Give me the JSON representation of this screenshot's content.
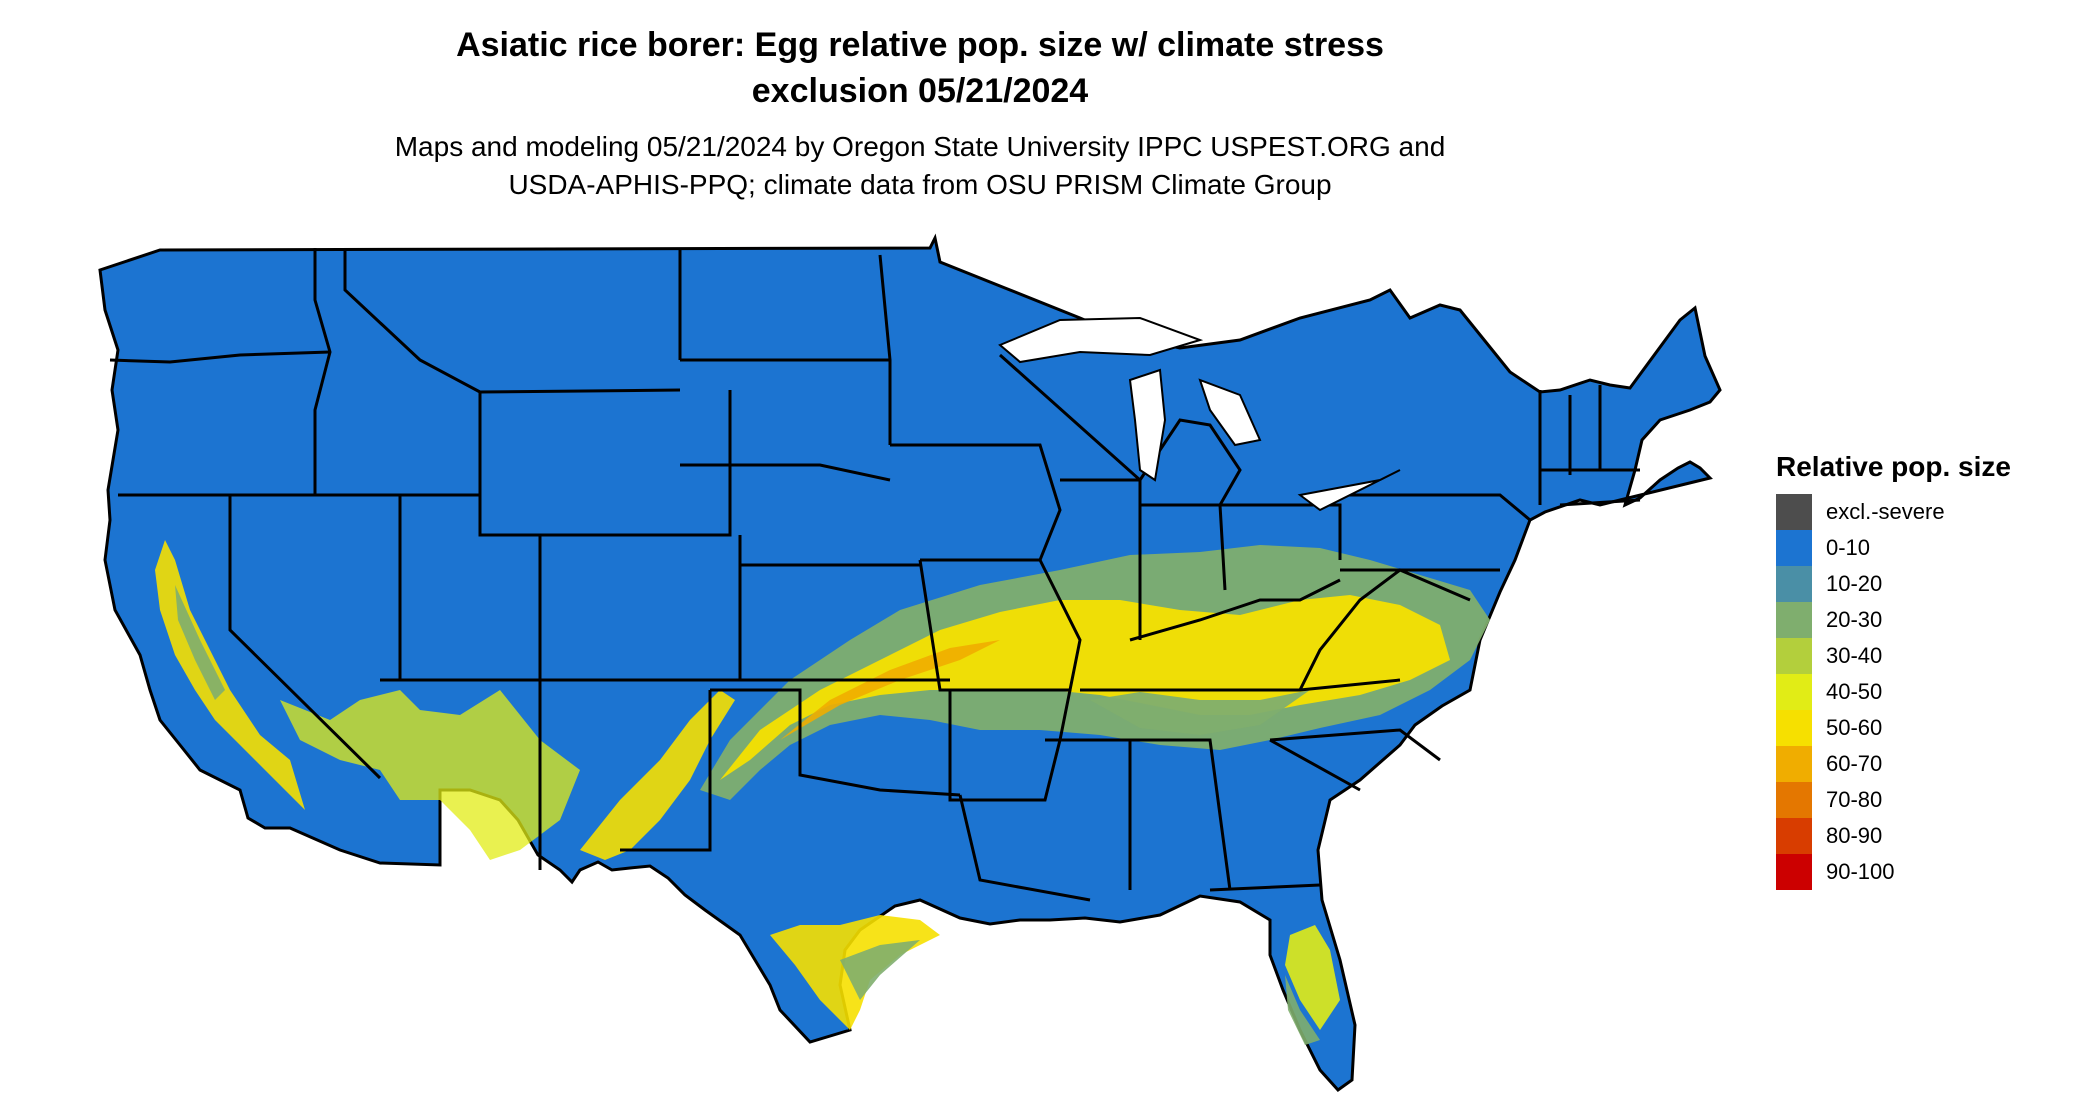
{
  "title": {
    "line1": "Asiatic rice borer: Egg relative pop. size w/ climate stress",
    "line2": "exclusion 05/21/2024"
  },
  "subtitle": {
    "line1": "Maps and modeling 05/21/2024 by Oregon State University IPPC USPEST.ORG and",
    "line2": "USDA-APHIS-PPQ; climate data from OSU PRISM Climate Group"
  },
  "legend": {
    "title": "Relative pop. size",
    "items": [
      {
        "label": "excl.-severe",
        "color": "#4d4d4d"
      },
      {
        "label": "0-10",
        "color": "#1c74d1"
      },
      {
        "label": "10-20",
        "color": "#4a8fa6"
      },
      {
        "label": "20-30",
        "color": "#7fae6e"
      },
      {
        "label": "30-40",
        "color": "#b3cf3c"
      },
      {
        "label": "40-50",
        "color": "#e1ec16"
      },
      {
        "label": "50-60",
        "color": "#f6e000"
      },
      {
        "label": "60-70",
        "color": "#f0ad00"
      },
      {
        "label": "70-80",
        "color": "#e47700"
      },
      {
        "label": "80-90",
        "color": "#d83d00"
      },
      {
        "label": "90-100",
        "color": "#cc0000"
      }
    ]
  },
  "map": {
    "region": "Contiguous United States",
    "base_color": "#1c74d1",
    "border_color": "#000000"
  }
}
